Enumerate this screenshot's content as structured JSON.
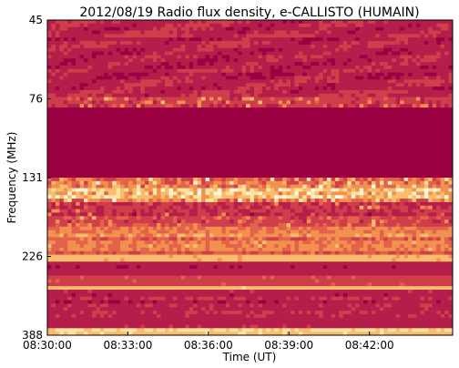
{
  "chart_data": {
    "type": "heatmap",
    "title": "2012/08/19  Radio flux density, e-CALLISTO (HUMAIN)",
    "xlabel": "Time (UT)",
    "ylabel": "Frequency (MHz)",
    "x_range_minutes": [
      0,
      15.1
    ],
    "x_ticks": [
      {
        "minute": 0,
        "label": "08:30:00"
      },
      {
        "minute": 3,
        "label": "08:33:00"
      },
      {
        "minute": 6,
        "label": "08:36:00"
      },
      {
        "minute": 9,
        "label": "08:39:00"
      },
      {
        "minute": 12,
        "label": "08:42:00"
      }
    ],
    "y_ticks": [
      {
        "label": "45",
        "value": 45
      },
      {
        "label": "76",
        "value": 76
      },
      {
        "label": "131",
        "value": 131
      },
      {
        "label": "226",
        "value": 226
      },
      {
        "label": "388",
        "value": 388
      }
    ],
    "colormap": [
      "#9b0043",
      "#b51e4a",
      "#cf3e4a",
      "#e3634a",
      "#f2904f",
      "#f7bd6c",
      "#fbe3a1",
      "#fff6d9"
    ],
    "bands": [
      {
        "from": 0,
        "to": 0.24,
        "level": 0.2,
        "noise": 0.12,
        "striation": 0.06
      },
      {
        "from": 0.24,
        "to": 0.28,
        "level": 0.3,
        "noise": 0.14,
        "spikes": 0.25
      },
      {
        "from": 0.28,
        "to": 0.5,
        "level": 0.02,
        "noise": 0.02
      },
      {
        "from": 0.5,
        "to": 0.58,
        "level": 0.55,
        "noise": 0.3,
        "spikes": 0.35
      },
      {
        "from": 0.58,
        "to": 0.66,
        "level": 0.3,
        "noise": 0.18,
        "spikes": 0.12
      },
      {
        "from": 0.66,
        "to": 0.69,
        "level": 0.5,
        "noise": 0.2
      },
      {
        "from": 0.69,
        "to": 0.74,
        "level": 0.45,
        "noise": 0.2
      },
      {
        "from": 0.74,
        "to": 0.77,
        "level": 0.7,
        "noise": 0.12
      },
      {
        "from": 0.77,
        "to": 0.81,
        "level": 0.18,
        "noise": 0.08
      },
      {
        "from": 0.81,
        "to": 0.84,
        "level": 0.35,
        "noise": 0.12
      },
      {
        "from": 0.84,
        "to": 0.86,
        "level": 0.72,
        "noise": 0.05
      },
      {
        "from": 0.86,
        "to": 0.94,
        "level": 0.2,
        "noise": 0.1
      },
      {
        "from": 0.94,
        "to": 0.98,
        "level": 0.22,
        "noise": 0.08
      },
      {
        "from": 0.98,
        "to": 1.0,
        "level": 0.75,
        "noise": 0.08
      }
    ]
  }
}
